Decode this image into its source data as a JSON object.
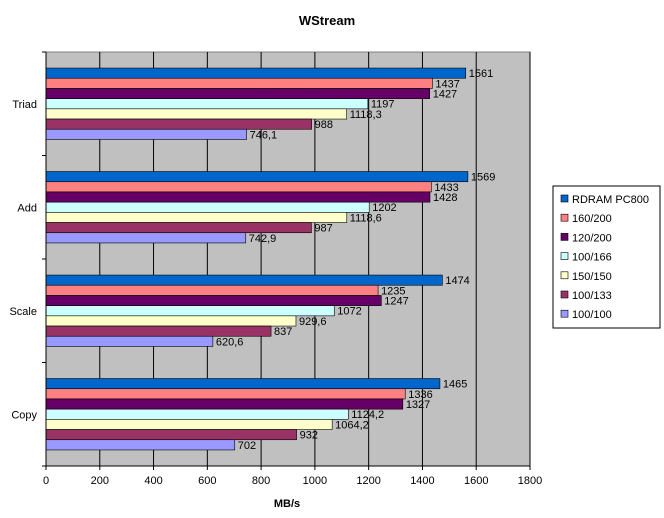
{
  "chart_data": {
    "type": "bar",
    "orientation": "horizontal",
    "title": "WStream",
    "xlabel": "MB/s",
    "ylabel": "",
    "xlim": [
      0,
      1800
    ],
    "x_ticks": [
      "0",
      "200",
      "400",
      "600",
      "800",
      "1000",
      "1200",
      "1400",
      "1600",
      "1800"
    ],
    "categories": [
      "Triad",
      "Add",
      "Scale",
      "Copy"
    ],
    "grid": "vertical",
    "legend_position": "right",
    "plot_background": "#c0c0c0",
    "series": [
      {
        "name": "RDRAM PC800",
        "color": "#0066cc",
        "values": [
          1561,
          1569,
          1474,
          1465
        ],
        "labels": [
          "1561",
          "1569",
          "1474",
          "1465"
        ]
      },
      {
        "name": "160/200",
        "color": "#ff8080",
        "values": [
          1437,
          1433,
          1235,
          1336
        ],
        "labels": [
          "1437",
          "1433",
          "1235",
          "1336"
        ]
      },
      {
        "name": "120/200",
        "color": "#660066",
        "values": [
          1427,
          1428,
          1247,
          1327
        ],
        "labels": [
          "1427",
          "1428",
          "1247",
          "1327"
        ]
      },
      {
        "name": "100/166",
        "color": "#ccffff",
        "values": [
          1197,
          1202,
          1072,
          1124.2
        ],
        "labels": [
          "1197",
          "1202",
          "1072",
          "1124,2"
        ]
      },
      {
        "name": "150/150",
        "color": "#ffffcc",
        "values": [
          1118.3,
          1118.6,
          929.6,
          1064.2
        ],
        "labels": [
          "1118,3",
          "1118,6",
          "929,6",
          "1064,2"
        ]
      },
      {
        "name": "100/133",
        "color": "#993366",
        "values": [
          988,
          987,
          837,
          932
        ],
        "labels": [
          "988",
          "987",
          "837",
          "932"
        ]
      },
      {
        "name": "100/100",
        "color": "#9999ff",
        "values": [
          746.1,
          742.9,
          620.6,
          702
        ],
        "labels": [
          "746,1",
          "742,9",
          "620,6",
          "702"
        ]
      }
    ]
  }
}
